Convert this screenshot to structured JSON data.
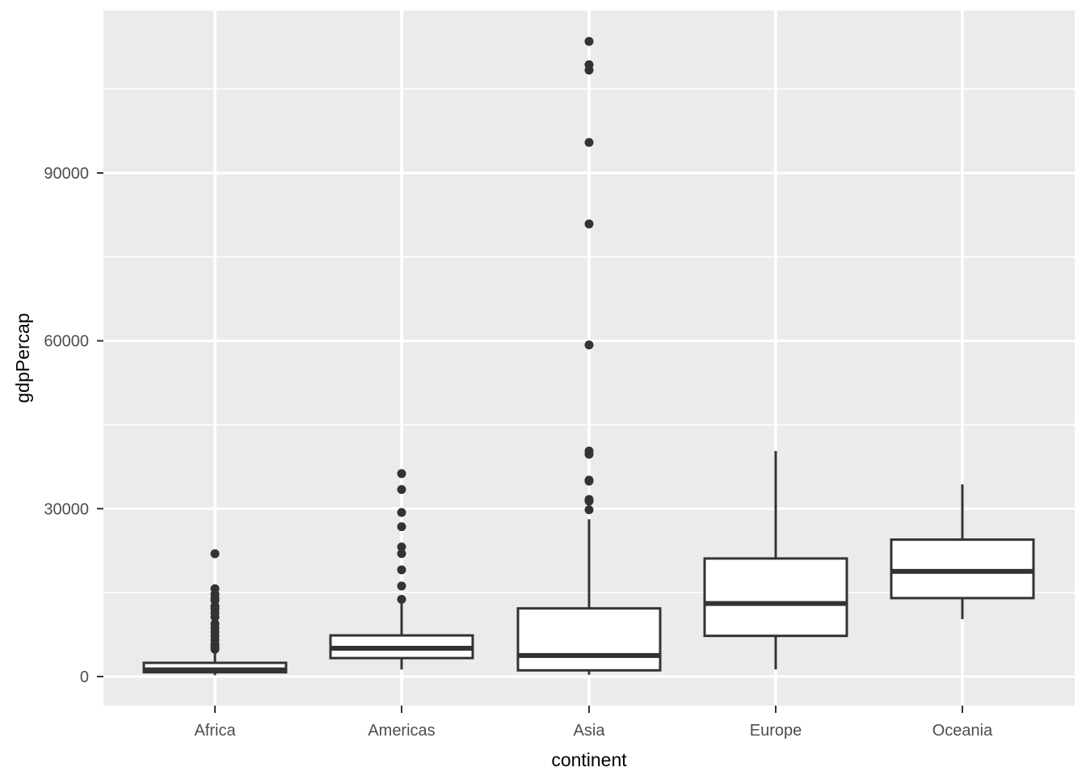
{
  "chart_data": {
    "type": "boxplot",
    "title": "",
    "xlabel": "continent",
    "ylabel": "gdpPercap",
    "categories": [
      "Africa",
      "Americas",
      "Asia",
      "Europe",
      "Oceania"
    ],
    "y_axis": {
      "ticks": [
        {
          "value": 0,
          "label": "0"
        },
        {
          "value": 30000,
          "label": "30000"
        },
        {
          "value": 60000,
          "label": "60000"
        },
        {
          "value": 90000,
          "label": "90000"
        }
      ],
      "minor_gridlines": [
        15000,
        45000,
        75000,
        105000
      ],
      "range": [
        -5200,
        119500
      ],
      "grid": true
    },
    "legend_position": "none",
    "series": [
      {
        "category": "Africa",
        "whisker_low": 240,
        "q1": 760,
        "median": 1190,
        "q3": 2450,
        "whisker_high": 4510,
        "outliers": [
          4870,
          5350,
          5820,
          6550,
          7270,
          7990,
          8710,
          9440,
          10650,
          11370,
          12090,
          12570,
          13590,
          14020,
          14740,
          15700,
          21950
        ]
      },
      {
        "category": "Americas",
        "whisker_low": 1250,
        "q1": 3300,
        "median": 5050,
        "q3": 7350,
        "whisker_high": 13150,
        "outliers": [
          13800,
          16180,
          19070,
          21970,
          23170,
          26780,
          29330,
          33420,
          36270
        ]
      },
      {
        "category": "Asia",
        "whisker_low": 330,
        "q1": 1110,
        "median": 3760,
        "q3": 12180,
        "whisker_high": 28120,
        "outliers": [
          29800,
          31350,
          31660,
          34930,
          35110,
          39730,
          40300,
          59270,
          80890,
          95460,
          108380,
          109350,
          113520
        ]
      },
      {
        "category": "Europe",
        "whisker_low": 1260,
        "q1": 7270,
        "median": 13050,
        "q3": 21100,
        "whisker_high": 40310,
        "outliers": []
      },
      {
        "category": "Oceania",
        "whisker_low": 10260,
        "q1": 14020,
        "median": 18790,
        "q3": 24470,
        "whisker_high": 34350,
        "outliers": []
      }
    ],
    "colors": {
      "plot_background": "#FFFFFF",
      "panel_background": "#EBEBEB",
      "gridline": "#FFFFFF",
      "box_stroke": "#333333",
      "box_fill": "#FFFFFF",
      "outlier_dot": "#333333",
      "tick_mark": "#333333",
      "tick_label": "#4D4D4D",
      "axis_title": "#000000"
    }
  }
}
